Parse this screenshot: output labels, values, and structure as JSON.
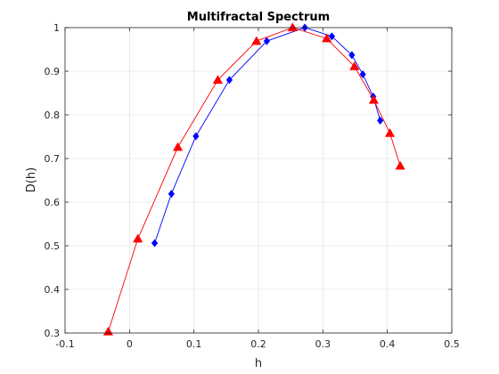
{
  "chart_data": {
    "type": "line",
    "title": "Multifractal Spectrum",
    "xlabel": "h",
    "ylabel": "D(h)",
    "xlim": [
      -0.1,
      0.5
    ],
    "ylim": [
      0.3,
      1.0
    ],
    "xticks": [
      "-0.1",
      "0",
      "0.1",
      "0.2",
      "0.3",
      "0.4",
      "0.5"
    ],
    "yticks": [
      "0.3",
      "0.4",
      "0.5",
      "0.6",
      "0.7",
      "0.8",
      "0.9",
      "1"
    ],
    "grid": true,
    "legend": "none",
    "series": [
      {
        "color": "#0000ff",
        "marker": "diamond",
        "x": [
          0.039,
          0.065,
          0.103,
          0.155,
          0.213,
          0.272,
          0.314,
          0.345,
          0.362,
          0.378,
          0.389
        ],
        "y": [
          0.506,
          0.619,
          0.751,
          0.88,
          0.969,
          1.0,
          0.98,
          0.937,
          0.893,
          0.842,
          0.787
        ]
      },
      {
        "color": "#ff0000",
        "marker": "triangle",
        "x": [
          -0.033,
          0.013,
          0.075,
          0.137,
          0.197,
          0.253,
          0.306,
          0.349,
          0.379,
          0.404,
          0.42
        ],
        "y": [
          0.303,
          0.516,
          0.726,
          0.88,
          0.969,
          1.0,
          0.975,
          0.911,
          0.834,
          0.758,
          0.683
        ]
      }
    ]
  }
}
